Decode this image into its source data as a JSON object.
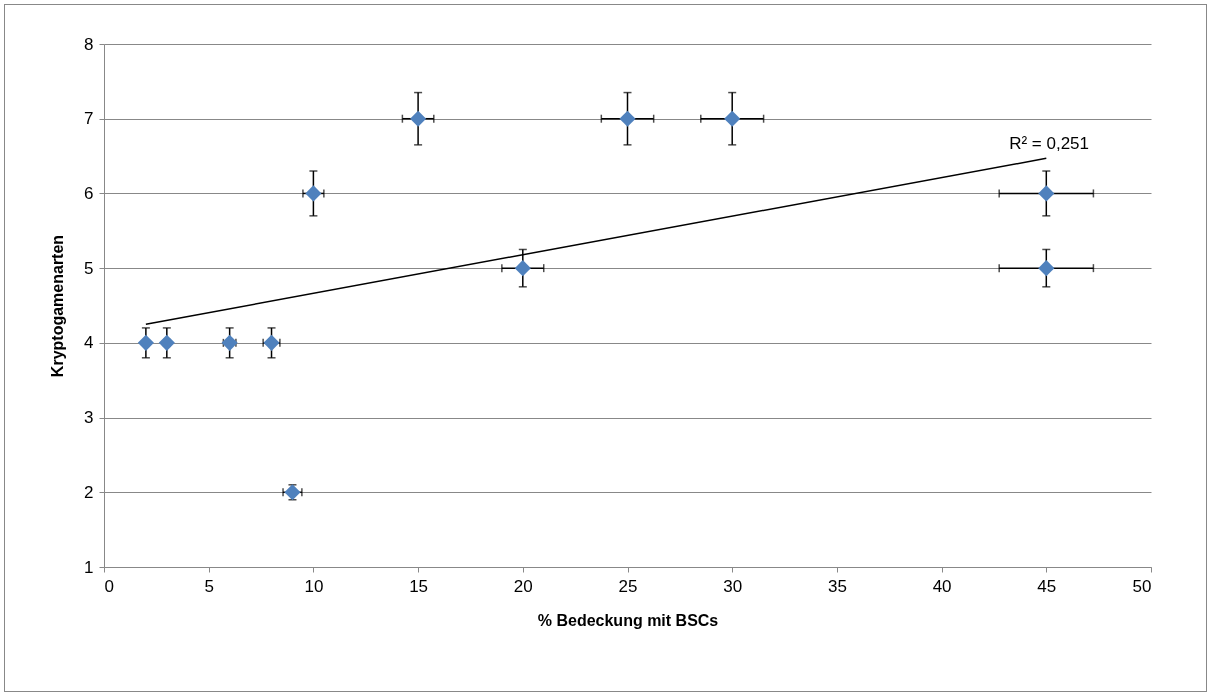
{
  "chart_data": {
    "type": "scatter",
    "xlabel": "% Bedeckung mit BSCs",
    "ylabel": "Kryptogamenarten",
    "x": [
      2,
      3,
      6,
      8,
      9,
      10,
      15,
      20,
      25,
      30,
      45,
      45
    ],
    "series": [
      {
        "color": "#4f81bd",
        "marker": "diamond",
        "values": [
          4,
          4,
          4,
          4,
          2,
          6,
          7,
          5,
          7,
          7,
          6,
          5
        ],
        "errors": [
          0.2,
          0.2,
          0.2,
          0.2,
          0.1,
          0.3,
          0.35,
          0.25,
          0.35,
          0.35,
          0.3,
          0.25
        ],
        "xerrors": [
          0.1,
          0.15,
          0.3,
          0.4,
          0.45,
          0.5,
          0.75,
          1,
          1.25,
          1.5,
          2.25,
          2.25
        ]
      },
      {
        "type": "line",
        "color": "#000000",
        "x": [
          2,
          45
        ],
        "values": [
          4.25,
          6.47
        ]
      }
    ],
    "annotations": [
      "R² = 0,251"
    ],
    "xlim": [
      0,
      50
    ],
    "xticks": [
      0,
      5,
      10,
      15,
      20,
      25,
      30,
      35,
      40,
      45,
      50
    ],
    "ylim": [
      1,
      8
    ],
    "yticks": [
      1,
      2,
      3,
      4,
      5,
      6,
      7,
      8
    ],
    "grid": "y"
  }
}
